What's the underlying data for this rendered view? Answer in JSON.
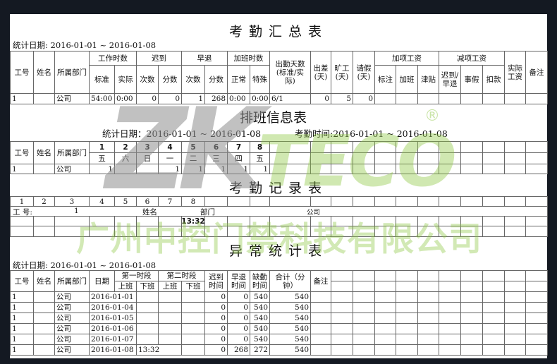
{
  "summary": {
    "title": "考勤汇总表",
    "date_label": "统计日期: 2016-01-01 ~ 2016-01-08",
    "headers": [
      "工号",
      "姓名",
      "所属部门",
      "工作时数",
      "标准",
      "实际",
      "迟到",
      "次数",
      "分数",
      "早退",
      "次数",
      "分数",
      "加班时数",
      "正常",
      "特殊",
      "出勤天数(标准/实际)",
      "出差(天)",
      "旷工(天)",
      "请假(天)",
      "加项工资",
      "标注",
      "加班",
      "津贴",
      "减项工资",
      "迟到/早退",
      "事假",
      "扣款",
      "实际工资",
      "备注"
    ],
    "row": [
      "1",
      "",
      "公司",
      "54:00",
      "0:00",
      "0",
      "0",
      "1",
      "268",
      "0:00",
      "0:00",
      "6/1",
      "0",
      "5",
      "0",
      "",
      "",
      "",
      "",
      "",
      "",
      "",
      ""
    ]
  },
  "schedule": {
    "title": "排班信息表",
    "date_label": "统计日期：2016-01-01 ~ 2016-01-08",
    "time_label": "考勤时间:2016-01-01 ~ 2016-01-08",
    "headers": [
      "工号",
      "姓名",
      "所属部门"
    ],
    "days": [
      "1",
      "2",
      "3",
      "4",
      "5",
      "6",
      "7",
      "8"
    ],
    "weekdays": [
      "五",
      "六",
      "日",
      "一",
      "二",
      "三",
      "四",
      "五"
    ],
    "row": [
      "1",
      "",
      "公司",
      "1",
      "",
      "",
      "1",
      "1",
      "1",
      "1",
      "1"
    ]
  },
  "records": {
    "title": "考勤记录表",
    "numbers": [
      "1",
      "2",
      "3",
      "4",
      "5",
      "6",
      "7",
      "8"
    ],
    "id_label": "工 号:",
    "id_value": "1",
    "name_label": "姓名",
    "dept_label": "部门",
    "dept_value": "公司",
    "punch_day8": "13:32"
  },
  "exceptions": {
    "title": "异常统计表",
    "date_label": "统计日期: 2016-01-01 ~ 2016-01-08",
    "headers": [
      "工号",
      "姓名",
      "所属部门",
      "日期",
      "第一时段",
      "上班",
      "下班",
      "第二时段",
      "上班",
      "下班",
      "迟到时间",
      "早退时间",
      "缺勤时间",
      "合计（分钟）",
      "备注"
    ],
    "rows": [
      {
        "id": "1",
        "name": "",
        "dept": "公司",
        "date": "2016-01-01",
        "in1": "",
        "late": "0",
        "early": "0",
        "absent": "540",
        "total": "540"
      },
      {
        "id": "1",
        "name": "",
        "dept": "公司",
        "date": "2016-01-04",
        "in1": "",
        "late": "0",
        "early": "0",
        "absent": "540",
        "total": "540"
      },
      {
        "id": "1",
        "name": "",
        "dept": "公司",
        "date": "2016-01-05",
        "in1": "",
        "late": "0",
        "early": "0",
        "absent": "540",
        "total": "540"
      },
      {
        "id": "1",
        "name": "",
        "dept": "公司",
        "date": "2016-01-06",
        "in1": "",
        "late": "0",
        "early": "0",
        "absent": "540",
        "total": "540"
      },
      {
        "id": "1",
        "name": "",
        "dept": "公司",
        "date": "2016-01-07",
        "in1": "",
        "late": "0",
        "early": "0",
        "absent": "540",
        "total": "540"
      },
      {
        "id": "1",
        "name": "",
        "dept": "公司",
        "date": "2016-01-08",
        "in1": "13:32",
        "late": "0",
        "early": "268",
        "absent": "272",
        "total": "540"
      }
    ]
  },
  "watermark": {
    "logo": "ZKTeco",
    "logo_left": "ZK",
    "logo_right": "TECO",
    "registered": "®",
    "company": "广州中控门禁科技有限公司",
    "gray": "#9a9a9a",
    "green": "#8cc63f"
  }
}
